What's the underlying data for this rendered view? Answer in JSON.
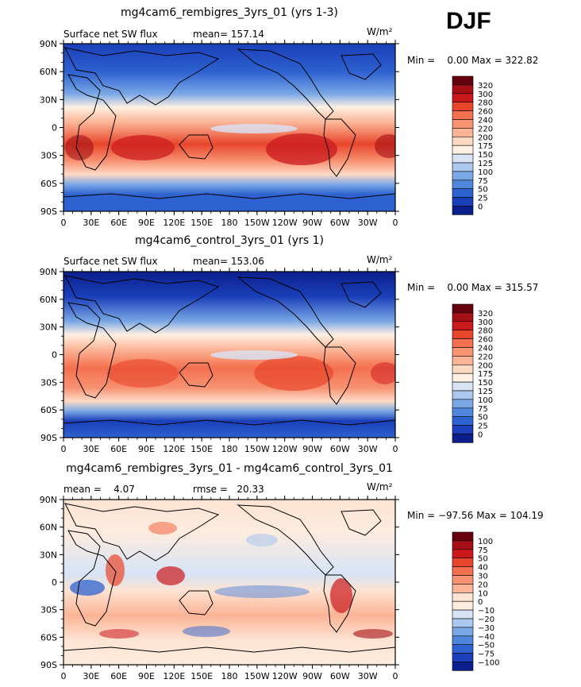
{
  "season_label": "DJF",
  "axes": {
    "lat_ticks": [
      "90N",
      "60N",
      "30N",
      "0",
      "30S",
      "60S",
      "90S"
    ],
    "lon_ticks": [
      "0",
      "30E",
      "60E",
      "90E",
      "120E",
      "150E",
      "180",
      "150W",
      "120W",
      "90W",
      "60W",
      "30W",
      "0"
    ]
  },
  "chart_data": [
    {
      "type": "heatmap",
      "title": "mg4cam6_rembigres_3yrs_01 (yrs 1-3)",
      "left_label": "Surface net SW flux",
      "mean_text": "mean= 157.14",
      "unit": "W/m²",
      "minmax_text": "Min =    0.00 Max = 322.82",
      "min": 0.0,
      "max": 322.82,
      "mean": 157.14,
      "colorbar": {
        "levels": [
          "320",
          "300",
          "280",
          "260",
          "240",
          "220",
          "200",
          "175",
          "150",
          "125",
          "100",
          "75",
          "50",
          "25",
          "0"
        ],
        "colors": [
          "#67000d",
          "#a50f15",
          "#cb181d",
          "#e8462b",
          "#f4704f",
          "#f79272",
          "#fbb496",
          "#fdd9c4",
          "#fff0e2",
          "#d8e4f6",
          "#adc8ee",
          "#7aa8e6",
          "#4f86dc",
          "#2e62d0",
          "#1a3fb8",
          "#0b1f8c"
        ]
      }
    },
    {
      "type": "heatmap",
      "title": "mg4cam6_control_3yrs_01 (yrs 1)",
      "left_label": "Surface net SW flux",
      "mean_text": "mean= 153.06",
      "unit": "W/m²",
      "minmax_text": "Min =    0.00 Max = 315.57",
      "min": 0.0,
      "max": 315.57,
      "mean": 153.06,
      "colorbar": {
        "levels": [
          "320",
          "300",
          "280",
          "260",
          "240",
          "220",
          "200",
          "175",
          "150",
          "125",
          "100",
          "75",
          "50",
          "25",
          "0"
        ],
        "colors": [
          "#67000d",
          "#a50f15",
          "#cb181d",
          "#e8462b",
          "#f4704f",
          "#f79272",
          "#fbb496",
          "#fdd9c4",
          "#fff0e2",
          "#d8e4f6",
          "#adc8ee",
          "#7aa8e6",
          "#4f86dc",
          "#2e62d0",
          "#1a3fb8",
          "#0b1f8c"
        ]
      }
    },
    {
      "type": "heatmap",
      "title": "mg4cam6_rembigres_3yrs_01 - mg4cam6_control_3yrs_01",
      "left_label": "mean =    4.07",
      "mean_text": "rmse =   20.33",
      "unit": "W/m²",
      "minmax_text": "Min = −97.56 Max = 104.19",
      "min": -97.56,
      "max": 104.19,
      "mean": 4.07,
      "rmse": 20.33,
      "colorbar": {
        "levels": [
          "100",
          "75",
          "50",
          "40",
          "30",
          "20",
          "10",
          "0",
          "−10",
          "−20",
          "−30",
          "−40",
          "−50",
          "−75",
          "−100"
        ],
        "colors": [
          "#67000d",
          "#a50f15",
          "#cb181d",
          "#e8462b",
          "#f4704f",
          "#f79272",
          "#fbb496",
          "#fde3d2",
          "#fdecdf",
          "#d6e3f6",
          "#adc8ee",
          "#7aa8e6",
          "#4f86dc",
          "#2e62d0",
          "#1a3fb8",
          "#0b1f8c"
        ]
      }
    }
  ]
}
